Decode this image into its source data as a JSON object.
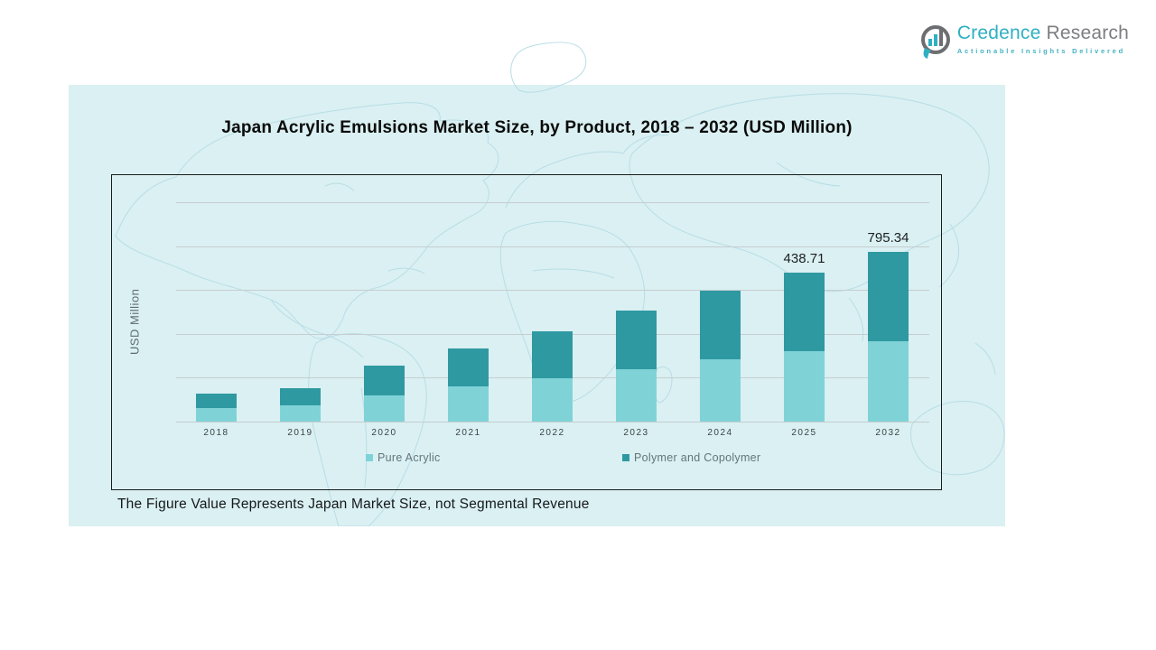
{
  "logo": {
    "brand_primary": "Credence",
    "brand_secondary": "Research",
    "tagline": "Actionable Insights Delivered",
    "colors": {
      "primary": "#2fb0c2",
      "secondary": "#7c7e81"
    }
  },
  "chart_data": {
    "type": "bar",
    "stacked": true,
    "title": "Japan Acrylic Emulsions Market Size, by Product, 2018 – 2032 (USD Million)",
    "ylabel": "USD Million",
    "xlabel": "",
    "categories": [
      "2018",
      "2019",
      "2020",
      "2021",
      "2022",
      "2023",
      "2024",
      "2025",
      "2032"
    ],
    "series": [
      {
        "name": "Pure Acrylic",
        "color": "#7fd3d7",
        "values": [
          15,
          18,
          29,
          39,
          48,
          58,
          69,
          78,
          89
        ]
      },
      {
        "name": "Polymer and Copolymer",
        "color": "#2f99a2",
        "values": [
          16,
          19,
          33,
          42,
          52,
          65,
          76,
          87,
          99
        ]
      }
    ],
    "values_unit": "relative bar height (y-axis shows no numeric ticks)",
    "total_labels": [
      {
        "category": "2025",
        "text": "438.71"
      },
      {
        "category": "2032",
        "text": "795.34"
      }
    ],
    "ylim": [
      0,
      273
    ],
    "gridline_count": 6,
    "grid": true,
    "legend_position": "bottom-inside"
  },
  "note": "The Figure Value Represents Japan Market Size, not Segmental Revenue",
  "banner": {
    "background": "#daf0f2",
    "map_line_color": "#b9dde6"
  }
}
